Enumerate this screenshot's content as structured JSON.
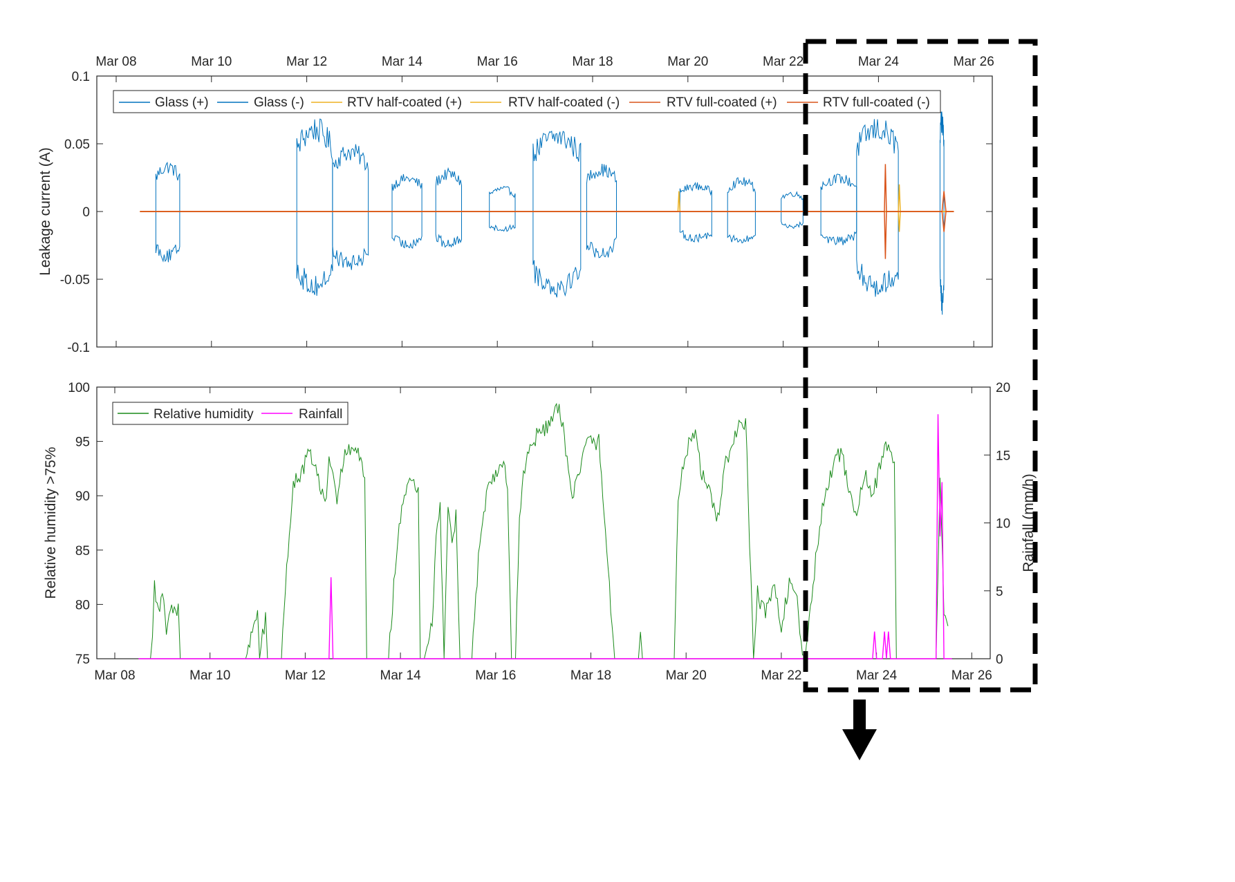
{
  "chart_data": [
    {
      "type": "line",
      "title": "",
      "xlabel": "",
      "ylabel": "Leakage current (A)",
      "ylim": [
        -0.1,
        0.1
      ],
      "xlim": [
        "Mar 08",
        "Mar 26"
      ],
      "x_tick_labels": [
        "Mar 08",
        "Mar 10",
        "Mar 12",
        "Mar 14",
        "Mar 16",
        "Mar 18",
        "Mar 20",
        "Mar 22",
        "Mar 24",
        "Mar 26"
      ],
      "y_tick_labels": [
        "0.1",
        "0.05",
        "0",
        "-0.05",
        "-0.1"
      ],
      "x_axis_location": "top",
      "grid": false,
      "legend_position": "top",
      "series": [
        {
          "name": "Glass (+)",
          "color": "#0072BD",
          "envelopes": [
            {
              "start": "Mar 08 20:00",
              "end": "Mar 09 08:00",
              "value": 0.03
            },
            {
              "start": "Mar 11 19:00",
              "end": "Mar 12 13:00",
              "value": 0.055
            },
            {
              "start": "Mar 12 13:00",
              "end": "Mar 13 07:00",
              "value": 0.04
            },
            {
              "start": "Mar 13 19:00",
              "end": "Mar 14 10:00",
              "value": 0.022
            },
            {
              "start": "Mar 14 17:00",
              "end": "Mar 15 06:00",
              "value": 0.025
            },
            {
              "start": "Mar 15 20:00",
              "end": "Mar 16 09:00",
              "value": 0.015
            },
            {
              "start": "Mar 16 18:00",
              "end": "Mar 17 18:00",
              "value": 0.05
            },
            {
              "start": "Mar 17 21:00",
              "end": "Mar 18 12:00",
              "value": 0.028
            },
            {
              "start": "Mar 19 20:00",
              "end": "Mar 20 12:00",
              "value": 0.017
            },
            {
              "start": "Mar 20 20:00",
              "end": "Mar 21 10:00",
              "value": 0.02
            },
            {
              "start": "Mar 21 23:00",
              "end": "Mar 22 10:00",
              "value": 0.012
            },
            {
              "start": "Mar 22 19:00",
              "end": "Mar 23 13:00",
              "value": 0.022
            },
            {
              "start": "Mar 23 13:00",
              "end": "Mar 24 10:00",
              "value": 0.055
            },
            {
              "start": "Mar 25 07:00",
              "end": "Mar 25 09:00",
              "value": 0.06
            }
          ]
        },
        {
          "name": "Glass (-)",
          "color": "#0072BD",
          "envelopes": [
            {
              "start": "Mar 08 20:00",
              "end": "Mar 09 08:00",
              "value": -0.03
            },
            {
              "start": "Mar 11 19:00",
              "end": "Mar 12 13:00",
              "value": -0.05
            },
            {
              "start": "Mar 12 13:00",
              "end": "Mar 13 07:00",
              "value": -0.035
            },
            {
              "start": "Mar 13 19:00",
              "end": "Mar 14 10:00",
              "value": -0.022
            },
            {
              "start": "Mar 14 17:00",
              "end": "Mar 15 06:00",
              "value": -0.022
            },
            {
              "start": "Mar 15 20:00",
              "end": "Mar 16 09:00",
              "value": -0.012
            },
            {
              "start": "Mar 16 18:00",
              "end": "Mar 17 18:00",
              "value": -0.05
            },
            {
              "start": "Mar 17 21:00",
              "end": "Mar 18 12:00",
              "value": -0.028
            },
            {
              "start": "Mar 19 20:00",
              "end": "Mar 20 12:00",
              "value": -0.018
            },
            {
              "start": "Mar 20 20:00",
              "end": "Mar 21 10:00",
              "value": -0.02
            },
            {
              "start": "Mar 21 23:00",
              "end": "Mar 22 10:00",
              "value": -0.01
            },
            {
              "start": "Mar 22 19:00",
              "end": "Mar 23 13:00",
              "value": -0.02
            },
            {
              "start": "Mar 23 13:00",
              "end": "Mar 24 10:00",
              "value": -0.05
            },
            {
              "start": "Mar 25 07:00",
              "end": "Mar 25 09:00",
              "value": -0.06
            }
          ]
        },
        {
          "name": "RTV half-coated (+)",
          "color": "#EDB120",
          "points": [
            {
              "x": "Mar 08 12:00",
              "y": 0
            },
            {
              "x": "Mar 19 19:00",
              "y": 0
            },
            {
              "x": "Mar 19 19:30",
              "y": 0.015
            },
            {
              "x": "Mar 19 20:00",
              "y": 0
            },
            {
              "x": "Mar 24 10:00",
              "y": 0
            },
            {
              "x": "Mar 24 10:30",
              "y": 0.02
            },
            {
              "x": "Mar 24 11:00",
              "y": 0
            },
            {
              "x": "Mar 25 14:00",
              "y": 0
            }
          ]
        },
        {
          "name": "RTV half-coated (-)",
          "color": "#EDB120",
          "points": [
            {
              "x": "Mar 08 12:00",
              "y": 0
            },
            {
              "x": "Mar 24 10:00",
              "y": 0
            },
            {
              "x": "Mar 24 10:30",
              "y": -0.015
            },
            {
              "x": "Mar 24 11:00",
              "y": 0
            },
            {
              "x": "Mar 25 14:00",
              "y": 0
            }
          ]
        },
        {
          "name": "RTV full-coated (+)",
          "color": "#D95319",
          "points": [
            {
              "x": "Mar 08 12:00",
              "y": 0
            },
            {
              "x": "Mar 24 03:00",
              "y": 0
            },
            {
              "x": "Mar 24 03:30",
              "y": 0.035
            },
            {
              "x": "Mar 24 04:00",
              "y": 0
            },
            {
              "x": "Mar 25 08:00",
              "y": 0
            },
            {
              "x": "Mar 25 09:00",
              "y": 0.015
            },
            {
              "x": "Mar 25 10:00",
              "y": 0
            },
            {
              "x": "Mar 25 14:00",
              "y": 0
            }
          ]
        },
        {
          "name": "RTV full-coated (-)",
          "color": "#D95319",
          "points": [
            {
              "x": "Mar 08 12:00",
              "y": 0
            },
            {
              "x": "Mar 24 03:00",
              "y": 0
            },
            {
              "x": "Mar 24 03:30",
              "y": -0.035
            },
            {
              "x": "Mar 24 04:00",
              "y": 0
            },
            {
              "x": "Mar 25 08:00",
              "y": 0
            },
            {
              "x": "Mar 25 09:00",
              "y": -0.015
            },
            {
              "x": "Mar 25 10:00",
              "y": 0
            },
            {
              "x": "Mar 25 14:00",
              "y": 0
            }
          ]
        }
      ]
    },
    {
      "type": "line",
      "title": "",
      "xlabel": "",
      "ylabel": "Relative humidity >75%",
      "ylabel_right": "Rainfall (mm/h)",
      "ylim": [
        75,
        100
      ],
      "ylim_right": [
        0,
        20
      ],
      "xlim": [
        "Mar 08",
        "Mar 26"
      ],
      "x_tick_labels": [
        "Mar 08",
        "Mar 10",
        "Mar 12",
        "Mar 14",
        "Mar 16",
        "Mar 18",
        "Mar 20",
        "Mar 22",
        "Mar 24",
        "Mar 26"
      ],
      "y_tick_labels": [
        "100",
        "95",
        "90",
        "85",
        "80",
        "75"
      ],
      "y_tick_labels_right": [
        "20",
        "15",
        "10",
        "5",
        "0"
      ],
      "grid": false,
      "legend_position": "top-left",
      "series": [
        {
          "name": "Relative humidity",
          "color": "#1A8A1A",
          "axis": "left",
          "points": [
            {
              "x": "Mar 08 12:00",
              "y": 75
            },
            {
              "x": "Mar 08 18:00",
              "y": 75
            },
            {
              "x": "Mar 08 19:00",
              "y": 77
            },
            {
              "x": "Mar 08 20:00",
              "y": 82
            },
            {
              "x": "Mar 08 22:00",
              "y": 79
            },
            {
              "x": "Mar 09 00:00",
              "y": 81
            },
            {
              "x": "Mar 09 02:00",
              "y": 78
            },
            {
              "x": "Mar 09 04:00",
              "y": 80
            },
            {
              "x": "Mar 09 06:00",
              "y": 79
            },
            {
              "x": "Mar 09 08:00",
              "y": 80
            },
            {
              "x": "Mar 09 09:00",
              "y": 75
            },
            {
              "x": "Mar 10 18:00",
              "y": 75
            },
            {
              "x": "Mar 11 00:00",
              "y": 79
            },
            {
              "x": "Mar 11 01:00",
              "y": 75
            },
            {
              "x": "Mar 11 04:00",
              "y": 79
            },
            {
              "x": "Mar 11 05:00",
              "y": 75
            },
            {
              "x": "Mar 11 12:00",
              "y": 75
            },
            {
              "x": "Mar 11 16:00",
              "y": 87
            },
            {
              "x": "Mar 11 18:00",
              "y": 91
            },
            {
              "x": "Mar 11 22:00",
              "y": 92
            },
            {
              "x": "Mar 12 02:00",
              "y": 94
            },
            {
              "x": "Mar 12 06:00",
              "y": 92
            },
            {
              "x": "Mar 12 10:00",
              "y": 89
            },
            {
              "x": "Mar 12 12:00",
              "y": 93
            },
            {
              "x": "Mar 12 16:00",
              "y": 90
            },
            {
              "x": "Mar 12 20:00",
              "y": 94
            },
            {
              "x": "Mar 13 02:00",
              "y": 94
            },
            {
              "x": "Mar 13 06:00",
              "y": 92
            },
            {
              "x": "Mar 13 07:00",
              "y": 75
            },
            {
              "x": "Mar 13 18:00",
              "y": 75
            },
            {
              "x": "Mar 13 22:00",
              "y": 85
            },
            {
              "x": "Mar 14 02:00",
              "y": 90
            },
            {
              "x": "Mar 14 06:00",
              "y": 92
            },
            {
              "x": "Mar 14 09:00",
              "y": 90
            },
            {
              "x": "Mar 14 10:00",
              "y": 75
            },
            {
              "x": "Mar 14 12:00",
              "y": 75
            },
            {
              "x": "Mar 14 16:00",
              "y": 78
            },
            {
              "x": "Mar 14 18:00",
              "y": 86
            },
            {
              "x": "Mar 14 20:00",
              "y": 89
            },
            {
              "x": "Mar 14 22:00",
              "y": 75
            },
            {
              "x": "Mar 15 00:00",
              "y": 89
            },
            {
              "x": "Mar 15 02:00",
              "y": 85
            },
            {
              "x": "Mar 15 04:00",
              "y": 88
            },
            {
              "x": "Mar 15 06:00",
              "y": 75
            },
            {
              "x": "Mar 15 12:00",
              "y": 75
            },
            {
              "x": "Mar 15 16:00",
              "y": 86
            },
            {
              "x": "Mar 15 20:00",
              "y": 91
            },
            {
              "x": "Mar 16 00:00",
              "y": 92
            },
            {
              "x": "Mar 16 04:00",
              "y": 93
            },
            {
              "x": "Mar 16 06:00",
              "y": 91
            },
            {
              "x": "Mar 16 08:00",
              "y": 75
            },
            {
              "x": "Mar 16 10:00",
              "y": 75
            },
            {
              "x": "Mar 16 12:00",
              "y": 88
            },
            {
              "x": "Mar 16 14:00",
              "y": 92
            },
            {
              "x": "Mar 16 18:00",
              "y": 95
            },
            {
              "x": "Mar 17 00:00",
              "y": 96
            },
            {
              "x": "Mar 17 04:00",
              "y": 97
            },
            {
              "x": "Mar 17 08:00",
              "y": 98
            },
            {
              "x": "Mar 17 10:00",
              "y": 96
            },
            {
              "x": "Mar 17 14:00",
              "y": 90
            },
            {
              "x": "Mar 17 18:00",
              "y": 92
            },
            {
              "x": "Mar 17 22:00",
              "y": 95
            },
            {
              "x": "Mar 18 04:00",
              "y": 95
            },
            {
              "x": "Mar 18 08:00",
              "y": 85
            },
            {
              "x": "Mar 18 12:00",
              "y": 75
            },
            {
              "x": "Mar 19 00:00",
              "y": 75
            },
            {
              "x": "Mar 19 01:00",
              "y": 77
            },
            {
              "x": "Mar 19 02:00",
              "y": 75
            },
            {
              "x": "Mar 19 18:00",
              "y": 75
            },
            {
              "x": "Mar 19 20:00",
              "y": 90
            },
            {
              "x": "Mar 20 00:00",
              "y": 94
            },
            {
              "x": "Mar 20 04:00",
              "y": 96
            },
            {
              "x": "Mar 20 08:00",
              "y": 92
            },
            {
              "x": "Mar 20 12:00",
              "y": 90
            },
            {
              "x": "Mar 20 16:00",
              "y": 88
            },
            {
              "x": "Mar 20 20:00",
              "y": 93
            },
            {
              "x": "Mar 21 02:00",
              "y": 96
            },
            {
              "x": "Mar 21 06:00",
              "y": 97
            },
            {
              "x": "Mar 21 08:00",
              "y": 86
            },
            {
              "x": "Mar 21 10:00",
              "y": 75
            },
            {
              "x": "Mar 21 12:00",
              "y": 81
            },
            {
              "x": "Mar 21 16:00",
              "y": 79
            },
            {
              "x": "Mar 21 20:00",
              "y": 82
            },
            {
              "x": "Mar 22 00:00",
              "y": 78
            },
            {
              "x": "Mar 22 04:00",
              "y": 82
            },
            {
              "x": "Mar 22 08:00",
              "y": 80
            },
            {
              "x": "Mar 22 10:00",
              "y": 76
            },
            {
              "x": "Mar 22 12:00",
              "y": 75
            },
            {
              "x": "Mar 22 16:00",
              "y": 82
            },
            {
              "x": "Mar 22 20:00",
              "y": 88
            },
            {
              "x": "Mar 23 02:00",
              "y": 93
            },
            {
              "x": "Mar 23 06:00",
              "y": 94
            },
            {
              "x": "Mar 23 10:00",
              "y": 91
            },
            {
              "x": "Mar 23 14:00",
              "y": 88
            },
            {
              "x": "Mar 23 18:00",
              "y": 92
            },
            {
              "x": "Mar 23 22:00",
              "y": 90
            },
            {
              "x": "Mar 24 02:00",
              "y": 93
            },
            {
              "x": "Mar 24 06:00",
              "y": 95
            },
            {
              "x": "Mar 24 09:00",
              "y": 93
            },
            {
              "x": "Mar 24 10:00",
              "y": 75
            },
            {
              "x": "Mar 25 06:00",
              "y": 75
            },
            {
              "x": "Mar 25 08:00",
              "y": 92
            },
            {
              "x": "Mar 25 10:00",
              "y": 79
            },
            {
              "x": "Mar 25 12:00",
              "y": 78
            }
          ]
        },
        {
          "name": "Rainfall",
          "color": "#FF00FF",
          "axis": "right",
          "points": [
            {
              "x": "Mar 08 12:00",
              "y": 0
            },
            {
              "x": "Mar 12 12:00",
              "y": 0
            },
            {
              "x": "Mar 12 13:00",
              "y": 6
            },
            {
              "x": "Mar 12 14:00",
              "y": 0
            },
            {
              "x": "Mar 23 22:00",
              "y": 0
            },
            {
              "x": "Mar 23 23:00",
              "y": 2
            },
            {
              "x": "Mar 24 00:00",
              "y": 0
            },
            {
              "x": "Mar 24 03:00",
              "y": 0
            },
            {
              "x": "Mar 24 04:00",
              "y": 2
            },
            {
              "x": "Mar 24 05:00",
              "y": 0
            },
            {
              "x": "Mar 24 06:00",
              "y": 2
            },
            {
              "x": "Mar 24 07:00",
              "y": 0
            },
            {
              "x": "Mar 25 06:00",
              "y": 0
            },
            {
              "x": "Mar 25 07:00",
              "y": 18
            },
            {
              "x": "Mar 25 08:00",
              "y": 9
            },
            {
              "x": "Mar 25 09:00",
              "y": 13
            },
            {
              "x": "Mar 25 10:00",
              "y": 0
            },
            {
              "x": "Mar 25 14:00",
              "y": 0
            }
          ]
        }
      ]
    }
  ]
}
